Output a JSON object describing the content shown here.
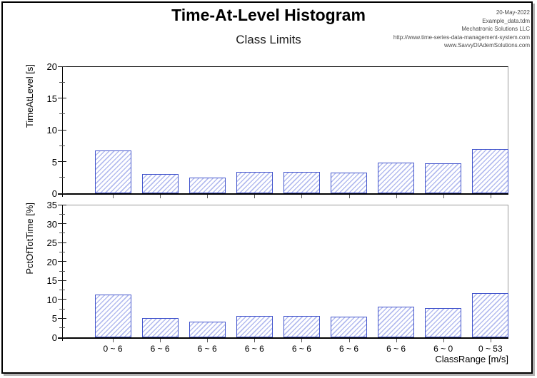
{
  "header": {
    "title": "Time-At-Level Histogram",
    "subtitle": "Class Limits",
    "info_lines": [
      "20-May-2022",
      "Example_data.tdm",
      "Mechatronic Solutions LLC",
      "http://www.time-series-data-management-system.com",
      "www.SavvyDIAdemSolutions.com"
    ]
  },
  "categories": [
    "0 ~ 6",
    "6 ~ 6",
    "6 ~ 6",
    "6 ~ 6",
    "6 ~ 6",
    "6 ~ 6",
    "6 ~ 6",
    "6 ~ 0",
    "0 ~ 53"
  ],
  "chart_data": [
    {
      "type": "bar",
      "title": "Time-At-Level Histogram",
      "ylabel": "TimeAtLevel [s]",
      "xlabel": "",
      "ylim": [
        0,
        20
      ],
      "ytick_major": [
        0,
        5,
        10,
        15,
        20
      ],
      "ytick_minor": [
        2.5,
        7.5,
        12.5,
        17.5
      ],
      "categories": [
        "0 ~ 6",
        "6 ~ 6",
        "6 ~ 6",
        "6 ~ 6",
        "6 ~ 6",
        "6 ~ 6",
        "6 ~ 6",
        "6 ~ 0",
        "0 ~ 53"
      ],
      "values": [
        6.7,
        3.0,
        2.5,
        3.4,
        3.4,
        3.3,
        4.8,
        4.7,
        7.0
      ],
      "show_x_labels": false,
      "legend": "none",
      "grid": false
    },
    {
      "type": "bar",
      "title": "Time-At-Level Histogram",
      "ylabel": "PctOfTotTime [%]",
      "xlabel": "ClassRange [m/s]",
      "ylim": [
        0,
        35
      ],
      "ytick_major": [
        0,
        5,
        10,
        15,
        20,
        25,
        30,
        35
      ],
      "ytick_minor": [
        2.5,
        7.5,
        12.5,
        17.5,
        22.5,
        27.5,
        32.5
      ],
      "categories": [
        "0 ~ 6",
        "6 ~ 6",
        "6 ~ 6",
        "6 ~ 6",
        "6 ~ 6",
        "6 ~ 6",
        "6 ~ 6",
        "6 ~ 0",
        "0 ~ 53"
      ],
      "values": [
        11.2,
        5.0,
        4.2,
        5.7,
        5.6,
        5.5,
        8.0,
        7.8,
        11.7
      ],
      "show_x_labels": true,
      "legend": "none",
      "grid": false
    }
  ],
  "colors": {
    "bar_border": "#4254cc",
    "bar_hatch": "#b4bcef",
    "axis": "#000000",
    "frame": "#9a9a9a"
  }
}
